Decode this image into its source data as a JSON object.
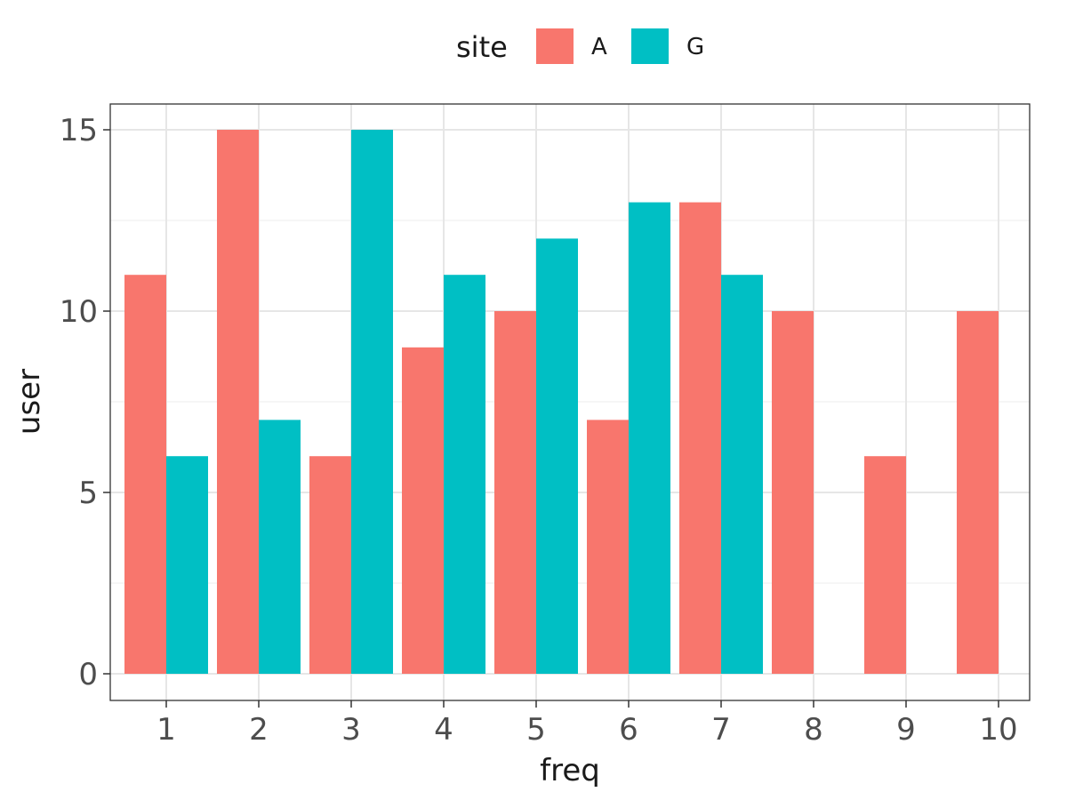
{
  "chart_data": {
    "type": "bar",
    "title": "",
    "xlabel": "freq",
    "ylabel": "user",
    "categories": [
      "1",
      "2",
      "3",
      "4",
      "5",
      "6",
      "7",
      "8",
      "9",
      "10"
    ],
    "series": [
      {
        "name": "A",
        "color": "#F8766D",
        "values": [
          11,
          15,
          6,
          9,
          10,
          7,
          13,
          10,
          6,
          10
        ]
      },
      {
        "name": "G",
        "color": "#00BFC4",
        "values": [
          6,
          7,
          15,
          11,
          12,
          13,
          11,
          null,
          null,
          null
        ]
      }
    ],
    "ylim": [
      0,
      15.7
    ],
    "yticks": [
      0,
      5,
      10,
      15
    ],
    "grid": true,
    "legend": {
      "title": "site",
      "position": "top",
      "entries": [
        "A",
        "G"
      ]
    }
  }
}
